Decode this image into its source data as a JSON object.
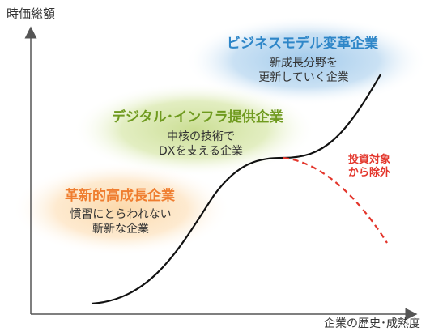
{
  "axes": {
    "y_label": "時価総額",
    "x_label": "企業の歴史･成熟度"
  },
  "zones": [
    {
      "title": "ビジネスモデル変革企業",
      "desc_line1": "新成長分野を",
      "desc_line2": "更新していく企業",
      "color": "#2e86c8",
      "glow": "#9cc7ea"
    },
    {
      "title": "デジタル･インフラ提供企業",
      "desc_line1": "中核の技術で",
      "desc_line2": "DXを支える企業",
      "color": "#6f9a1f",
      "glow": "#c8dc8e"
    },
    {
      "title": "革新的高成長企業",
      "desc_line1": "慣習にとらわれない",
      "desc_line2": "斬新な企業",
      "color": "#ef7d2f",
      "glow": "#fbd7a6"
    }
  ],
  "exclusion": {
    "line1": "投資対象",
    "line2": "から除外",
    "color": "#e3352b"
  }
}
